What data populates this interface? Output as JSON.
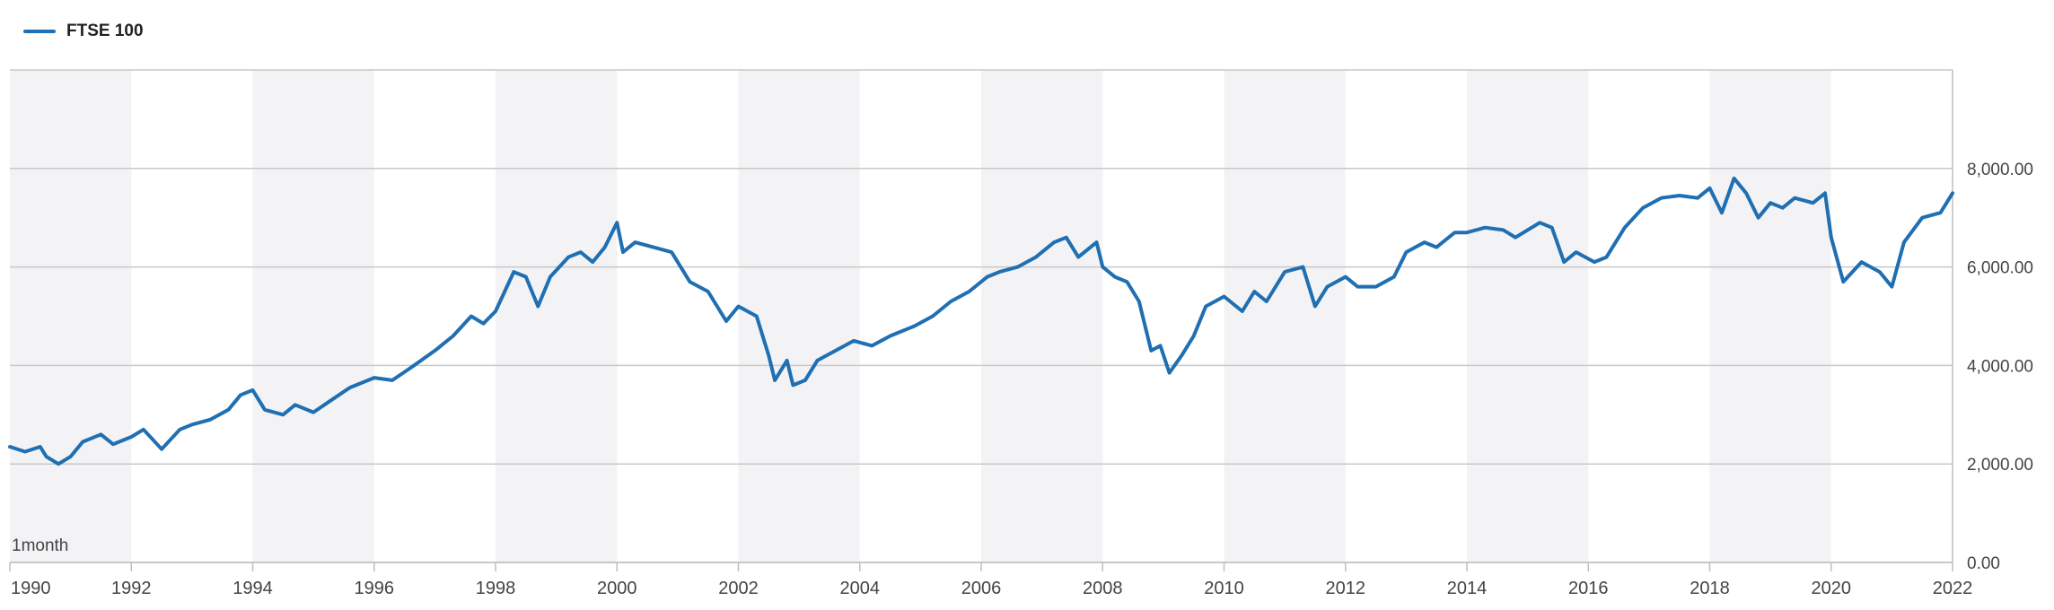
{
  "colors": {
    "line": "#1f6fb2",
    "band": "#f3f3f5",
    "grid": "#c8c8c8",
    "text": "#444444"
  },
  "legend": {
    "label": "FTSE 100"
  },
  "interval_label": "1month",
  "chart_data": {
    "type": "line",
    "title": "",
    "xlabel": "",
    "ylabel": "",
    "xlim": [
      1990.0,
      2022.0
    ],
    "ylim": [
      0,
      10000
    ],
    "y_ticks": [
      0,
      2000,
      4000,
      6000,
      8000
    ],
    "y_tick_labels": [
      "0.00",
      "2,000.00",
      "4,000.00",
      "6,000.00",
      "8,000.00"
    ],
    "x_ticks": [
      1990,
      1992,
      1994,
      1996,
      1998,
      2000,
      2002,
      2004,
      2006,
      2008,
      2010,
      2012,
      2014,
      2016,
      2018,
      2020,
      2022
    ],
    "x_tick_labels": [
      "1990",
      "1992",
      "1994",
      "1996",
      "1998",
      "2000",
      "2002",
      "2004",
      "2006",
      "2008",
      "2010",
      "2012",
      "2014",
      "2016",
      "2018",
      "2020",
      "2022"
    ],
    "grid": true,
    "legend_position": "top-left",
    "series": [
      {
        "name": "FTSE 100",
        "x": [
          1990.0,
          1990.25,
          1990.5,
          1990.6,
          1990.8,
          1991.0,
          1991.2,
          1991.5,
          1991.7,
          1992.0,
          1992.2,
          1992.5,
          1992.8,
          1993.0,
          1993.3,
          1993.6,
          1993.8,
          1994.0,
          1994.2,
          1994.5,
          1994.7,
          1995.0,
          1995.3,
          1995.6,
          1996.0,
          1996.3,
          1996.6,
          1997.0,
          1997.3,
          1997.6,
          1997.8,
          1998.0,
          1998.3,
          1998.5,
          1998.7,
          1998.9,
          1999.2,
          1999.4,
          1999.6,
          1999.8,
          2000.0,
          2000.1,
          2000.3,
          2000.6,
          2000.9,
          2001.2,
          2001.5,
          2001.8,
          2002.0,
          2002.3,
          2002.5,
          2002.6,
          2002.8,
          2002.9,
          2003.1,
          2003.3,
          2003.6,
          2003.9,
          2004.2,
          2004.5,
          2004.9,
          2005.2,
          2005.5,
          2005.8,
          2006.1,
          2006.3,
          2006.6,
          2006.9,
          2007.2,
          2007.4,
          2007.6,
          2007.9,
          2008.0,
          2008.2,
          2008.4,
          2008.6,
          2008.8,
          2008.95,
          2009.1,
          2009.3,
          2009.5,
          2009.7,
          2010.0,
          2010.3,
          2010.5,
          2010.7,
          2011.0,
          2011.3,
          2011.5,
          2011.7,
          2012.0,
          2012.2,
          2012.5,
          2012.8,
          2013.0,
          2013.3,
          2013.5,
          2013.8,
          2014.0,
          2014.3,
          2014.6,
          2014.8,
          2015.2,
          2015.4,
          2015.6,
          2015.8,
          2016.1,
          2016.3,
          2016.6,
          2016.9,
          2017.2,
          2017.5,
          2017.8,
          2018.0,
          2018.2,
          2018.4,
          2018.6,
          2018.8,
          2019.0,
          2019.2,
          2019.4,
          2019.7,
          2019.9,
          2020.0,
          2020.2,
          2020.5,
          2020.8,
          2021.0,
          2021.2,
          2021.5,
          2021.8,
          2022.0
        ],
        "values": [
          2350,
          2250,
          2350,
          2150,
          2000,
          2150,
          2450,
          2600,
          2400,
          2550,
          2700,
          2300,
          2700,
          2800,
          2900,
          3100,
          3400,
          3500,
          3100,
          3000,
          3200,
          3050,
          3300,
          3550,
          3750,
          3700,
          3950,
          4300,
          4600,
          5000,
          4850,
          5100,
          5900,
          5800,
          5200,
          5800,
          6200,
          6300,
          6100,
          6400,
          6900,
          6300,
          6500,
          6400,
          6300,
          5700,
          5500,
          4900,
          5200,
          5000,
          4200,
          3700,
          4100,
          3600,
          3700,
          4100,
          4300,
          4500,
          4400,
          4600,
          4800,
          5000,
          5300,
          5500,
          5800,
          5900,
          6000,
          6200,
          6500,
          6600,
          6200,
          6500,
          6000,
          5800,
          5700,
          5300,
          4300,
          4400,
          3850,
          4200,
          4600,
          5200,
          5400,
          5100,
          5500,
          5300,
          5900,
          6000,
          5200,
          5600,
          5800,
          5600,
          5600,
          5800,
          6300,
          6500,
          6400,
          6700,
          6700,
          6800,
          6750,
          6600,
          6900,
          6800,
          6100,
          6300,
          6100,
          6200,
          6800,
          7200,
          7400,
          7450,
          7400,
          7600,
          7100,
          7800,
          7500,
          7000,
          7300,
          7200,
          7400,
          7300,
          7500,
          6600,
          5700,
          6100,
          5900,
          5600,
          6500,
          7000,
          7100,
          7500
        ]
      }
    ]
  }
}
